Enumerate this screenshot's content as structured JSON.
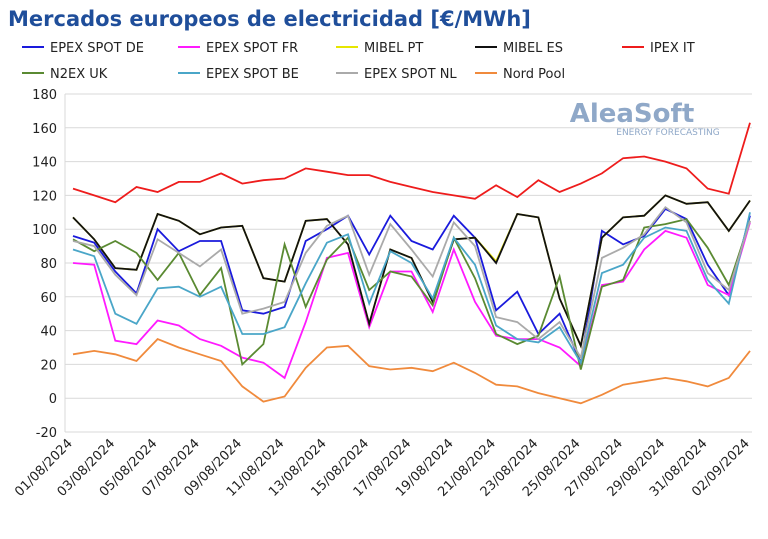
{
  "chart_data": {
    "type": "line",
    "title": "Mercados europeos de electricidad [€/MWh]",
    "watermark": "AleaSoft",
    "watermark_subtitle": "ENERGY FORECASTING",
    "categories": [
      "01/08/2024",
      null,
      "03/08/2024",
      null,
      "05/08/2024",
      null,
      "07/08/2024",
      null,
      "09/08/2024",
      null,
      "11/08/2024",
      null,
      "13/08/2024",
      null,
      "15/08/2024",
      null,
      "17/08/2024",
      null,
      "19/08/2024",
      null,
      "21/08/2024",
      null,
      "23/08/2024",
      null,
      "25/08/2024",
      null,
      "27/08/2024",
      null,
      "29/08/2024",
      null,
      "31/08/2024",
      null,
      "02/09/2024"
    ],
    "ylim": [
      -20,
      180
    ],
    "yticks": [
      -20,
      0,
      20,
      40,
      60,
      80,
      100,
      120,
      140,
      160,
      180
    ],
    "grid": true,
    "series": [
      {
        "name": "EPEX SPOT DE",
        "color": "#1a1adc",
        "values": [
          96,
          92,
          75,
          62,
          100,
          87,
          93,
          93,
          52,
          50,
          54,
          93,
          100,
          108,
          85,
          108,
          93,
          88,
          108,
          95,
          52,
          63,
          38,
          50,
          21,
          99,
          91,
          96,
          112,
          106,
          79,
          61,
          108
        ]
      },
      {
        "name": "EPEX SPOT FR",
        "color": "#ff1aff",
        "values": [
          80,
          79,
          34,
          32,
          46,
          43,
          35,
          31,
          24,
          21,
          12,
          45,
          83,
          86,
          42,
          75,
          75,
          51,
          88,
          57,
          37,
          35,
          35,
          30,
          19,
          67,
          69,
          88,
          99,
          95,
          67,
          61,
          104
        ]
      },
      {
        "name": "MIBEL PT",
        "color": "#e6e600",
        "values": [
          107,
          94,
          77,
          76,
          109,
          105,
          97,
          101,
          102,
          71,
          69,
          105,
          106,
          91,
          44,
          88,
          83,
          57,
          94,
          95,
          81,
          109,
          107,
          59,
          31,
          95,
          107,
          108,
          120,
          115,
          116,
          99,
          117
        ]
      },
      {
        "name": "MIBEL ES",
        "color": "#111111",
        "values": [
          107,
          94,
          77,
          76,
          109,
          105,
          97,
          101,
          102,
          71,
          69,
          105,
          106,
          91,
          44,
          88,
          83,
          57,
          94,
          95,
          80,
          109,
          107,
          59,
          31,
          95,
          107,
          108,
          120,
          115,
          116,
          99,
          117
        ]
      },
      {
        "name": "IPEX IT",
        "color": "#ee1c1c",
        "values": [
          124,
          120,
          116,
          125,
          122,
          128,
          128,
          133,
          127,
          129,
          130,
          136,
          134,
          132,
          132,
          128,
          125,
          122,
          120,
          118,
          126,
          119,
          129,
          122,
          127,
          133,
          142,
          143,
          140,
          136,
          124,
          121,
          163
        ]
      },
      {
        "name": "N2EX UK",
        "color": "#5a8a32",
        "values": [
          94,
          87,
          93,
          86,
          70,
          86,
          61,
          77,
          20,
          32,
          91,
          54,
          82,
          95,
          64,
          75,
          72,
          55,
          95,
          71,
          38,
          32,
          37,
          72,
          17,
          66,
          70,
          101,
          103,
          106,
          89,
          67,
          105
        ]
      },
      {
        "name": "EPEX SPOT BE",
        "color": "#4aa6c8",
        "values": [
          88,
          84,
          50,
          44,
          65,
          66,
          60,
          66,
          38,
          38,
          42,
          68,
          92,
          97,
          56,
          87,
          80,
          59,
          95,
          79,
          43,
          35,
          33,
          42,
          21,
          74,
          79,
          95,
          101,
          99,
          70,
          56,
          110
        ]
      },
      {
        "name": "EPEX SPOT NL",
        "color": "#aaaaaa",
        "values": [
          93,
          90,
          73,
          61,
          94,
          86,
          78,
          88,
          50,
          53,
          57,
          86,
          102,
          108,
          73,
          103,
          88,
          72,
          104,
          90,
          48,
          45,
          35,
          45,
          24,
          83,
          89,
          97,
          113,
          104,
          74,
          64,
          105
        ]
      },
      {
        "name": "Nord Pool",
        "color": "#f08a3c",
        "values": [
          26,
          28,
          26,
          22,
          35,
          30,
          26,
          22,
          7,
          -2,
          1,
          18,
          30,
          31,
          19,
          17,
          18,
          16,
          21,
          15,
          8,
          7,
          3,
          0,
          -3,
          2,
          8,
          10,
          12,
          10,
          7,
          12,
          28
        ]
      }
    ]
  }
}
